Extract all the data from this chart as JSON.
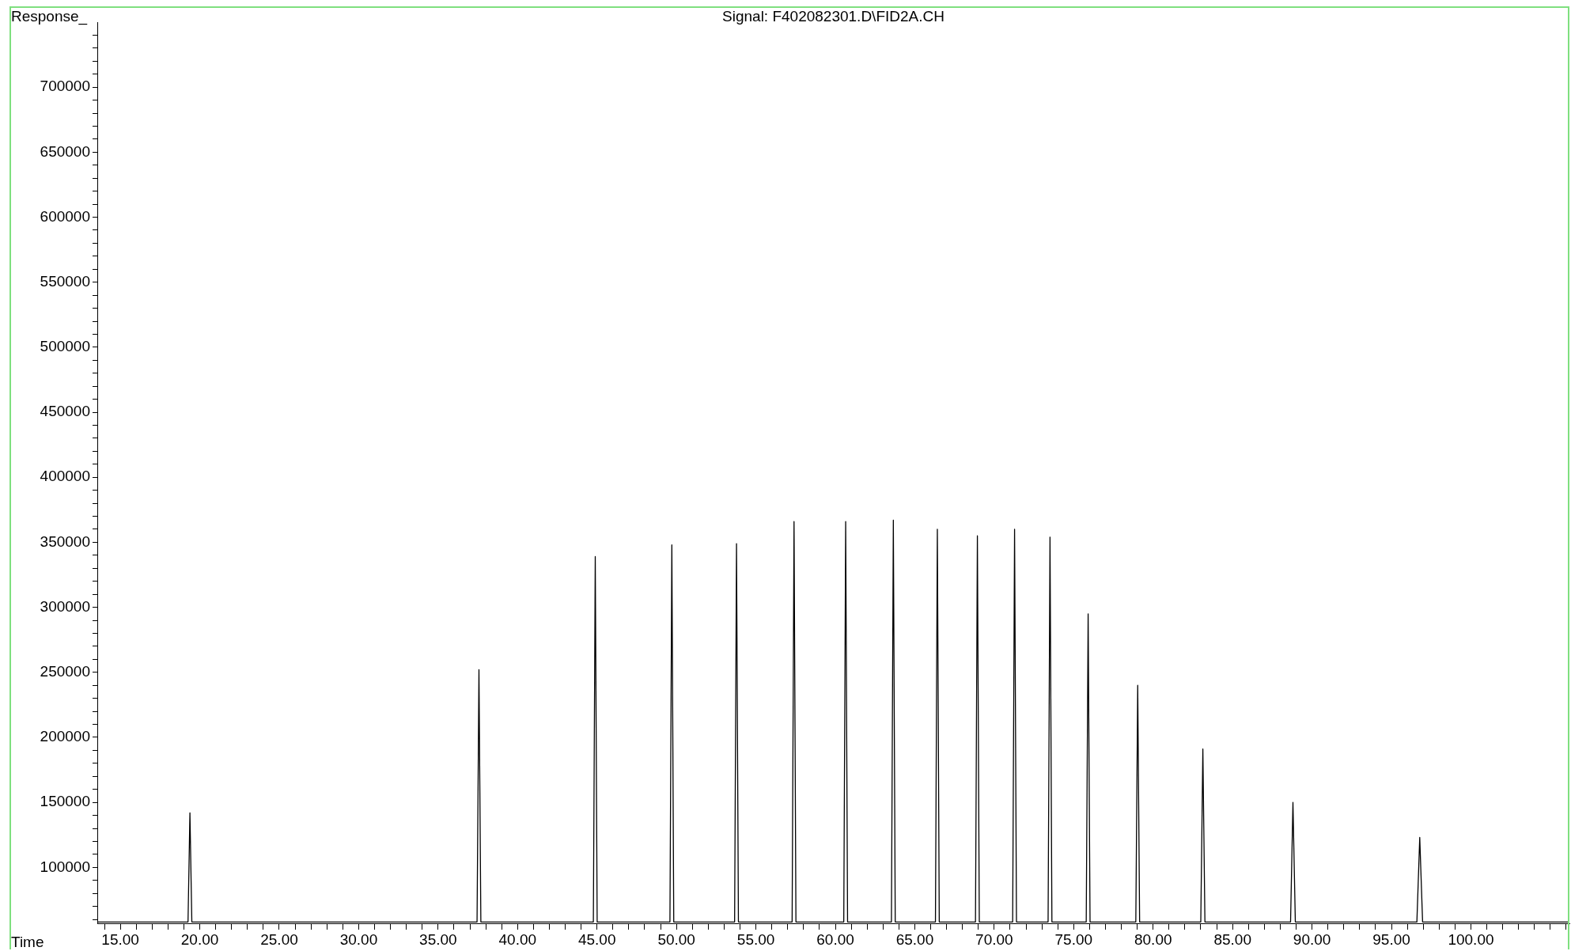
{
  "chart_data": {
    "type": "line",
    "title": "Signal: F402082301.D\\FID2A.CH",
    "xlabel": "Time",
    "ylabel": "Response_",
    "color": "#000000",
    "marker": "none",
    "line_style": "solid",
    "x": [
      13.55,
      19.26,
      19.38,
      19.5,
      37.45,
      37.57,
      37.69,
      44.77,
      44.89,
      45.01,
      49.59,
      49.71,
      49.83,
      53.66,
      53.78,
      53.9,
      57.28,
      57.4,
      57.52,
      60.53,
      60.65,
      60.77,
      63.53,
      63.65,
      63.77,
      66.3,
      66.42,
      66.54,
      68.82,
      68.94,
      69.06,
      71.16,
      71.28,
      71.4,
      73.39,
      73.51,
      73.63,
      75.79,
      75.91,
      76.03,
      78.91,
      79.03,
      79.15,
      83.0,
      83.13,
      83.26,
      88.65,
      88.8,
      88.95,
      96.6,
      96.78,
      96.96,
      106.2
    ],
    "values": [
      58000,
      58000,
      142000,
      58000,
      58000,
      252000,
      58000,
      58000,
      339000,
      58000,
      58000,
      348000,
      58000,
      58000,
      349000,
      58000,
      58000,
      366000,
      58000,
      58000,
      366000,
      58000,
      58000,
      367000,
      58000,
      58000,
      360000,
      58000,
      58000,
      355000,
      58000,
      58000,
      360000,
      58000,
      58000,
      354000,
      58000,
      58000,
      295000,
      58000,
      58000,
      240000,
      58000,
      58000,
      191000,
      58000,
      58000,
      150000,
      58000,
      58000,
      123000,
      58000,
      58000
    ],
    "xlim": [
      13.55,
      106.2
    ],
    "ylim": [
      57000,
      750000
    ],
    "xticks": [
      {
        "value": 14,
        "label": null
      },
      {
        "value": 15,
        "label": "15.00"
      },
      {
        "value": 16,
        "label": null
      },
      {
        "value": 17,
        "label": null
      },
      {
        "value": 18,
        "label": null
      },
      {
        "value": 19,
        "label": null
      },
      {
        "value": 20,
        "label": "20.00"
      },
      {
        "value": 21,
        "label": null
      },
      {
        "value": 22,
        "label": null
      },
      {
        "value": 23,
        "label": null
      },
      {
        "value": 24,
        "label": null
      },
      {
        "value": 25,
        "label": "25.00"
      },
      {
        "value": 26,
        "label": null
      },
      {
        "value": 27,
        "label": null
      },
      {
        "value": 28,
        "label": null
      },
      {
        "value": 29,
        "label": null
      },
      {
        "value": 30,
        "label": "30.00"
      },
      {
        "value": 31,
        "label": null
      },
      {
        "value": 32,
        "label": null
      },
      {
        "value": 33,
        "label": null
      },
      {
        "value": 34,
        "label": null
      },
      {
        "value": 35,
        "label": "35.00"
      },
      {
        "value": 36,
        "label": null
      },
      {
        "value": 37,
        "label": null
      },
      {
        "value": 38,
        "label": null
      },
      {
        "value": 39,
        "label": null
      },
      {
        "value": 40,
        "label": "40.00"
      },
      {
        "value": 41,
        "label": null
      },
      {
        "value": 42,
        "label": null
      },
      {
        "value": 43,
        "label": null
      },
      {
        "value": 44,
        "label": null
      },
      {
        "value": 45,
        "label": "45.00"
      },
      {
        "value": 46,
        "label": null
      },
      {
        "value": 47,
        "label": null
      },
      {
        "value": 48,
        "label": null
      },
      {
        "value": 49,
        "label": null
      },
      {
        "value": 50,
        "label": "50.00"
      },
      {
        "value": 51,
        "label": null
      },
      {
        "value": 52,
        "label": null
      },
      {
        "value": 53,
        "label": null
      },
      {
        "value": 54,
        "label": null
      },
      {
        "value": 55,
        "label": "55.00"
      },
      {
        "value": 56,
        "label": null
      },
      {
        "value": 57,
        "label": null
      },
      {
        "value": 58,
        "label": null
      },
      {
        "value": 59,
        "label": null
      },
      {
        "value": 60,
        "label": "60.00"
      },
      {
        "value": 61,
        "label": null
      },
      {
        "value": 62,
        "label": null
      },
      {
        "value": 63,
        "label": null
      },
      {
        "value": 64,
        "label": null
      },
      {
        "value": 65,
        "label": "65.00"
      },
      {
        "value": 66,
        "label": null
      },
      {
        "value": 67,
        "label": null
      },
      {
        "value": 68,
        "label": null
      },
      {
        "value": 69,
        "label": null
      },
      {
        "value": 70,
        "label": "70.00"
      },
      {
        "value": 71,
        "label": null
      },
      {
        "value": 72,
        "label": null
      },
      {
        "value": 73,
        "label": null
      },
      {
        "value": 74,
        "label": null
      },
      {
        "value": 75,
        "label": "75.00"
      },
      {
        "value": 76,
        "label": null
      },
      {
        "value": 77,
        "label": null
      },
      {
        "value": 78,
        "label": null
      },
      {
        "value": 79,
        "label": null
      },
      {
        "value": 80,
        "label": "80.00"
      },
      {
        "value": 81,
        "label": null
      },
      {
        "value": 82,
        "label": null
      },
      {
        "value": 83,
        "label": null
      },
      {
        "value": 84,
        "label": null
      },
      {
        "value": 85,
        "label": "85.00"
      },
      {
        "value": 86,
        "label": null
      },
      {
        "value": 87,
        "label": null
      },
      {
        "value": 88,
        "label": null
      },
      {
        "value": 89,
        "label": null
      },
      {
        "value": 90,
        "label": "90.00"
      },
      {
        "value": 91,
        "label": null
      },
      {
        "value": 92,
        "label": null
      },
      {
        "value": 93,
        "label": null
      },
      {
        "value": 94,
        "label": null
      },
      {
        "value": 95,
        "label": "95.00"
      },
      {
        "value": 96,
        "label": null
      },
      {
        "value": 97,
        "label": null
      },
      {
        "value": 98,
        "label": null
      },
      {
        "value": 99,
        "label": null
      },
      {
        "value": 100,
        "label": "100.00"
      },
      {
        "value": 101,
        "label": null
      },
      {
        "value": 102,
        "label": null
      },
      {
        "value": 103,
        "label": null
      },
      {
        "value": 104,
        "label": null
      },
      {
        "value": 105,
        "label": null
      },
      {
        "value": 106,
        "label": null
      }
    ],
    "yticks": [
      {
        "value": 60000,
        "label": null
      },
      {
        "value": 70000,
        "label": null
      },
      {
        "value": 80000,
        "label": null
      },
      {
        "value": 90000,
        "label": null
      },
      100000,
      {
        "value": 110000,
        "label": null
      },
      {
        "value": 120000,
        "label": null
      },
      {
        "value": 130000,
        "label": null
      },
      {
        "value": 140000,
        "label": null
      },
      150000,
      {
        "value": 160000,
        "label": null
      },
      {
        "value": 170000,
        "label": null
      },
      {
        "value": 180000,
        "label": null
      },
      {
        "value": 190000,
        "label": null
      },
      200000,
      {
        "value": 210000,
        "label": null
      },
      {
        "value": 220000,
        "label": null
      },
      {
        "value": 230000,
        "label": null
      },
      {
        "value": 240000,
        "label": null
      },
      250000,
      {
        "value": 260000,
        "label": null
      },
      {
        "value": 270000,
        "label": null
      },
      {
        "value": 280000,
        "label": null
      },
      {
        "value": 290000,
        "label": null
      },
      300000,
      {
        "value": 310000,
        "label": null
      },
      {
        "value": 320000,
        "label": null
      },
      {
        "value": 330000,
        "label": null
      },
      {
        "value": 340000,
        "label": null
      },
      350000,
      {
        "value": 360000,
        "label": null
      },
      {
        "value": 370000,
        "label": null
      },
      {
        "value": 380000,
        "label": null
      },
      {
        "value": 390000,
        "label": null
      },
      400000,
      {
        "value": 410000,
        "label": null
      },
      {
        "value": 420000,
        "label": null
      },
      {
        "value": 430000,
        "label": null
      },
      {
        "value": 440000,
        "label": null
      },
      450000,
      {
        "value": 460000,
        "label": null
      },
      {
        "value": 470000,
        "label": null
      },
      {
        "value": 480000,
        "label": null
      },
      {
        "value": 490000,
        "label": null
      },
      500000,
      {
        "value": 510000,
        "label": null
      },
      {
        "value": 520000,
        "label": null
      },
      {
        "value": 530000,
        "label": null
      },
      {
        "value": 540000,
        "label": null
      },
      550000,
      {
        "value": 560000,
        "label": null
      },
      {
        "value": 570000,
        "label": null
      },
      {
        "value": 580000,
        "label": null
      },
      {
        "value": 590000,
        "label": null
      },
      600000,
      {
        "value": 610000,
        "label": null
      },
      {
        "value": 620000,
        "label": null
      },
      {
        "value": 630000,
        "label": null
      },
      {
        "value": 640000,
        "label": null
      },
      650000,
      {
        "value": 660000,
        "label": null
      },
      {
        "value": 670000,
        "label": null
      },
      {
        "value": 680000,
        "label": null
      },
      {
        "value": 690000,
        "label": null
      },
      700000,
      {
        "value": 710000,
        "label": null
      },
      {
        "value": 720000,
        "label": null
      },
      {
        "value": 730000,
        "label": null
      },
      {
        "value": 740000,
        "label": null
      }
    ]
  }
}
